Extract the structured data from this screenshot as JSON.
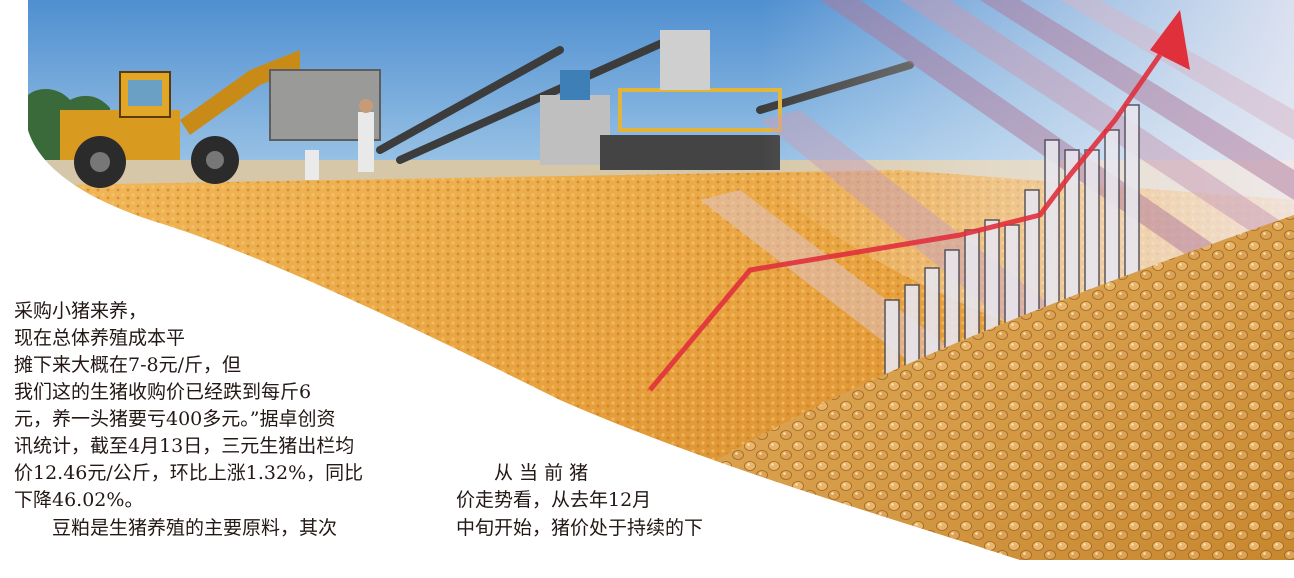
{
  "article": {
    "col1": [
      "采购小猪来养，",
      "现在总体养殖成本平",
      "摊下来大概在7-8元/斤，但",
      "我们这的生猪收购价已经跌到每斤6",
      "元，养一头猪要亏400多元。”据卓创资",
      "讯统计，截至4月13日，三元生猪出栏均",
      "价12.46元/公斤，环比上涨1.32%，同比",
      "下降46.02%。",
      "　　豆粕是生猪养殖的主要原料，其次"
    ],
    "col2": [
      "　　从 当 前 猪",
      "价走势看，从去年12月",
      "中旬开始，猪价处于持续的下"
    ]
  },
  "photo": {
    "colors": {
      "sky": "#5f9bd3",
      "corn": "#e9a743",
      "soy": "#d89a3c",
      "arrow": "#e0303c"
    }
  }
}
